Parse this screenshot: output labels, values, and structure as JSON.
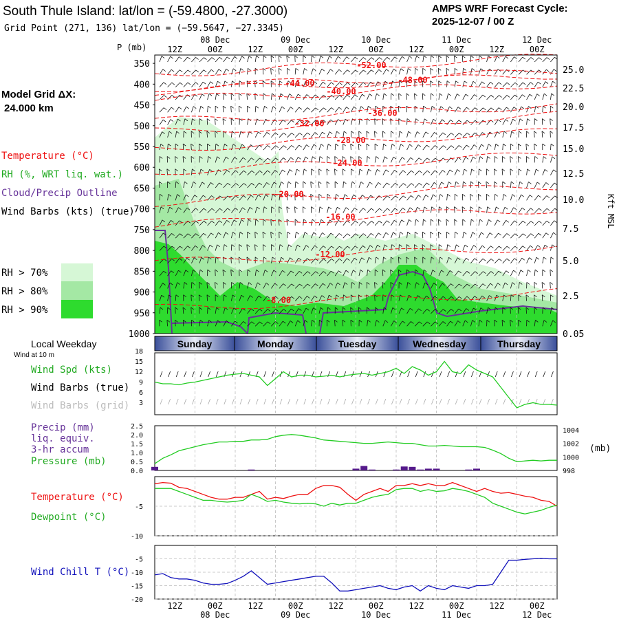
{
  "header": {
    "title": "South Thule Island:  lat/lon = (-59.4800, -27.3000)",
    "grid_point": "Grid Point (271, 136) lat/lon = (−59.5647, −27.3345)",
    "cycle_label": "AMPS WRF Forecast Cycle:",
    "cycle_value": "2025-12-07 / 00  Z"
  },
  "left_legend": {
    "model_grid_line1": "Model Grid ΔX:",
    "model_grid_line2": "24.000 km",
    "temperature": "Temperature (°C)",
    "rh": "RH (%, WRT liq. wat.)",
    "cloud": "Cloud/Precip Outline",
    "wind_barbs": "Wind Barbs (kts) (true)",
    "rh70": "RH > 70%",
    "rh80": "RH > 80%",
    "rh90": "RH > 90%",
    "local_weekday": "Local Weekday",
    "wind_at_10m": "Wind at 10 m",
    "wind_spd": "Wind Spd (kts)",
    "wind_barbs_true": "Wind Barbs (true)",
    "wind_barbs_grid": "Wind Barbs (grid)",
    "precip_line1": "Precip (mm)",
    "precip_line2": "liq. equiv.",
    "precip_line3": "3-hr accum",
    "pressure": "Pressure (mb)",
    "temp2": "Temperature (°C)",
    "dewpoint": "Dewpoint (°C)",
    "windchill": "Wind Chill T (°C)"
  },
  "colors": {
    "temperature": "#ee1111",
    "rh70": "#d6f7d6",
    "rh80": "#a4e8a4",
    "rh90": "#2edb2e",
    "cloud": "#663399",
    "green_line": "#22cc22",
    "blue_line": "#1111bb",
    "precip_bar": "#551a8b"
  },
  "time_axis": {
    "top_ticks": [
      "12Z",
      "00Z",
      "12Z",
      "00Z",
      "12Z",
      "00Z",
      "12Z",
      "00Z",
      "12Z",
      "00Z"
    ],
    "top_dates": [
      "08 Dec",
      "09 Dec",
      "10 Dec",
      "11 Dec",
      "12 Dec"
    ],
    "bottom_ticks": [
      "12Z",
      "00Z",
      "12Z",
      "00Z",
      "12Z",
      "00Z",
      "12Z",
      "00Z",
      "12Z",
      "00Z"
    ],
    "bottom_dates": [
      "08 Dec",
      "09 Dec",
      "10 Dec",
      "11 Dec",
      "12 Dec"
    ],
    "weekdays": [
      "Sunday",
      "Monday",
      "Tuesday",
      "Wednesday",
      "Thursday"
    ]
  },
  "chart_data": [
    {
      "type": "heatmap",
      "ylabel_left": "P (mb)",
      "ylabel_right": "Kft MSL",
      "pressure_ticks": [
        "350",
        "400",
        "450",
        "500",
        "550",
        "600",
        "650",
        "700",
        "750",
        "800",
        "850",
        "900",
        "950",
        "1000"
      ],
      "height_ticks": [
        "25.0",
        "22.5",
        "20.0",
        "17.5",
        "15.0",
        "12.5",
        "10.0",
        "7.5",
        "5.0",
        "2.5",
        "0.05"
      ],
      "isotherm_labels": [
        {
          "text": "-52.00",
          "p": 355
        },
        {
          "text": "-48.00",
          "p": 390
        },
        {
          "text": "-44.00",
          "p": 398
        },
        {
          "text": "-40.00",
          "p": 418
        },
        {
          "text": "-36.00",
          "p": 470
        },
        {
          "text": "-32.00",
          "p": 495
        },
        {
          "text": "-28.00",
          "p": 535
        },
        {
          "text": "-24.00",
          "p": 590
        },
        {
          "text": "-20.00",
          "p": 665
        },
        {
          "text": "-16.00",
          "p": 720
        },
        {
          "text": "-12.00",
          "p": 810
        },
        {
          "text": "-8.00",
          "p": 920
        }
      ]
    },
    {
      "type": "line",
      "name": "wind_speed",
      "yticks": [
        "18",
        "15",
        "12",
        "9",
        "6",
        "3"
      ],
      "ylim": [
        0,
        18
      ],
      "values": [
        9.5,
        9.0,
        9.0,
        8.7,
        9.2,
        9.5,
        10.0,
        10.5,
        11.0,
        11.5,
        11.8,
        12.0,
        11.5,
        11.0,
        8.5,
        10.5,
        12.5,
        11.0,
        11.5,
        11.5,
        11.0,
        11.2,
        11.5,
        11.0,
        11.5,
        11.8,
        12.0,
        11.5,
        12.0,
        12.5,
        13.5,
        12.0,
        14.0,
        13.0,
        11.5,
        12.5,
        15.5,
        12.5,
        12.0,
        14.5,
        13.0,
        12.0,
        11.0,
        8.0,
        5.0,
        2.0,
        3.0,
        3.5,
        3.0,
        3.0,
        2.8
      ]
    },
    {
      "type": "bar",
      "name": "precip",
      "yticks": [
        "2.5",
        "2.0",
        "1.5",
        "1.0",
        "0.5",
        "0.0"
      ],
      "ylim": [
        0,
        2.5
      ],
      "values": [
        0.2,
        0,
        0,
        0,
        0,
        0,
        0,
        0,
        0,
        0,
        0,
        0,
        0.05,
        0,
        0,
        0,
        0,
        0,
        0,
        0,
        0,
        0,
        0,
        0,
        0,
        0.1,
        0.25,
        0.05,
        0,
        0,
        0.05,
        0.22,
        0.2,
        0.05,
        0.1,
        0.1,
        0,
        0,
        0,
        0.05,
        0.1,
        0,
        0,
        0,
        0,
        0,
        0,
        0,
        0,
        0,
        0
      ]
    },
    {
      "type": "line",
      "name": "pressure",
      "yticks_right": [
        "1004",
        "1002",
        "1000",
        "998"
      ],
      "unit": "(mb)",
      "ylim": [
        998,
        1004.6
      ],
      "values": [
        999.0,
        999.8,
        1000.3,
        1000.9,
        1001.2,
        1001.5,
        1001.8,
        1002.0,
        1002.2,
        1002.2,
        1002.3,
        1002.3,
        1002.5,
        1002.5,
        1002.6,
        1003.0,
        1003.2,
        1003.3,
        1003.2,
        1003.0,
        1002.8,
        1002.5,
        1002.4,
        1002.3,
        1002.2,
        1002.1,
        1002.0,
        1002.0,
        1002.1,
        1002.2,
        1002.1,
        1002.0,
        1002.0,
        1001.8,
        1001.6,
        1001.6,
        1001.7,
        1001.6,
        1001.5,
        1001.5,
        1001.5,
        1001.4,
        1001.0,
        1000.5,
        999.8,
        999.3,
        999.4,
        999.5,
        999.4,
        999.5,
        999.5
      ]
    },
    {
      "type": "line",
      "name": "temperature_dewpoint",
      "yticks": [
        "-5",
        "-10"
      ],
      "ylim": [
        -10,
        0
      ],
      "series": [
        {
          "name": "Temperature",
          "values": [
            -1.2,
            -1.0,
            -1.1,
            -1.8,
            -2.0,
            -2.5,
            -3.0,
            -3.5,
            -3.8,
            -3.8,
            -3.5,
            -3.5,
            -3.0,
            -2.5,
            -3.8,
            -3.5,
            -3.7,
            -3.3,
            -3.0,
            -3.0,
            -2.0,
            -1.5,
            -1.5,
            -1.8,
            -3.0,
            -4.0,
            -3.0,
            -2.5,
            -2.0,
            -2.5,
            -1.5,
            -1.5,
            -1.2,
            -1.5,
            -1.2,
            -1.5,
            -1.5,
            -1.0,
            -1.5,
            -2.0,
            -2.5,
            -2.0,
            -2.5,
            -2.8,
            -2.7,
            -3.0,
            -3.3,
            -3.5,
            -4.0,
            -4.2,
            -5.0
          ]
        },
        {
          "name": "Dewpoint",
          "values": [
            -2.0,
            -2.0,
            -2.0,
            -2.5,
            -3.0,
            -3.5,
            -4.0,
            -4.0,
            -4.2,
            -4.3,
            -4.2,
            -4.0,
            -3.0,
            -3.5,
            -4.2,
            -4.0,
            -4.3,
            -4.5,
            -4.6,
            -4.5,
            -4.6,
            -5.0,
            -4.5,
            -4.8,
            -4.5,
            -4.5,
            -4.0,
            -3.5,
            -3.2,
            -3.0,
            -2.2,
            -2.0,
            -2.0,
            -2.5,
            -2.2,
            -2.5,
            -2.4,
            -2.0,
            -2.2,
            -2.5,
            -3.0,
            -3.5,
            -4.5,
            -5.0,
            -5.5,
            -6.0,
            -6.3,
            -6.0,
            -5.7,
            -5.2,
            -4.8
          ]
        }
      ]
    },
    {
      "type": "line",
      "name": "wind_chill",
      "yticks": [
        "-5",
        "-10",
        "-15",
        "-20"
      ],
      "ylim": [
        -20,
        0
      ],
      "values": [
        -11.0,
        -10.5,
        -12.0,
        -12.5,
        -12.5,
        -13.0,
        -14.0,
        -14.5,
        -14.5,
        -14.2,
        -13.0,
        -11.5,
        -9.5,
        -12.0,
        -14.5,
        -14.0,
        -13.5,
        -13.0,
        -12.5,
        -12.0,
        -11.5,
        -11.5,
        -14.0,
        -17.0,
        -17.0,
        -16.5,
        -16.0,
        -15.5,
        -15.0,
        -16.0,
        -16.5,
        -15.5,
        -15.0,
        -17.0,
        -15.0,
        -16.0,
        -16.5,
        -15.0,
        -15.5,
        -16.0,
        -15.0,
        -15.0,
        -14.5,
        -10.0,
        -5.5,
        -5.5,
        -5.2,
        -5.0,
        -4.8,
        -5.0,
        -5.0
      ]
    }
  ]
}
